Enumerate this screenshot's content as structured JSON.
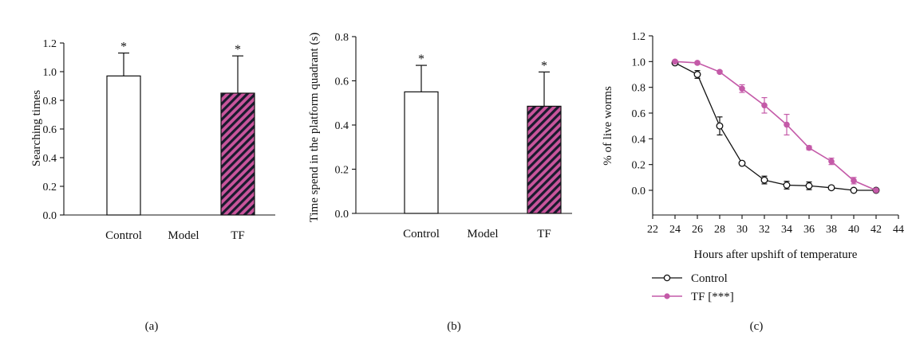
{
  "chart_data": [
    {
      "type": "bar",
      "caption": "(a)",
      "categories": [
        "Control",
        "Model",
        "TF"
      ],
      "values": [
        0.97,
        0,
        0.85
      ],
      "error": [
        0.16,
        0,
        0.26
      ],
      "significance": [
        "*",
        "",
        "*"
      ],
      "ylabel": "Searching times",
      "ylim": [
        0,
        1.2
      ],
      "yticks": [
        "0.0",
        "0.2",
        "0.4",
        "0.6",
        "0.8",
        "1.0",
        "1.2"
      ],
      "grid": false,
      "bar_styles": [
        "white",
        "none",
        "hatched"
      ]
    },
    {
      "type": "bar",
      "caption": "(b)",
      "categories": [
        "Control",
        "Model",
        "TF"
      ],
      "values": [
        0.55,
        0,
        0.485
      ],
      "error": [
        0.12,
        0,
        0.155
      ],
      "significance": [
        "*",
        "",
        "*"
      ],
      "ylabel": "Time spend in the platform quadrant (s)",
      "ylim": [
        0,
        0.8
      ],
      "yticks": [
        "0.0",
        "0.2",
        "0.4",
        "0.6",
        "0.8"
      ],
      "grid": false,
      "bar_styles": [
        "white",
        "none",
        "hatched"
      ]
    },
    {
      "type": "line",
      "caption": "(c)",
      "xlabel": "Hours after upshift of temperature",
      "ylabel": "% of live worms",
      "xlim": [
        22,
        44
      ],
      "ylim": [
        0,
        1.2
      ],
      "xticks": [
        "22",
        "24",
        "26",
        "28",
        "30",
        "32",
        "34",
        "36",
        "38",
        "40",
        "42",
        "44"
      ],
      "yticks": [
        "0.0",
        "0.2",
        "0.4",
        "0.6",
        "0.8",
        "1.0",
        "1.2"
      ],
      "x": [
        24,
        26,
        28,
        30,
        32,
        34,
        36,
        38,
        40,
        42
      ],
      "series": [
        {
          "name": "Control",
          "marker": "open-circle",
          "values": [
            0.99,
            0.9,
            0.5,
            0.21,
            0.08,
            0.04,
            0.035,
            0.02,
            0.0,
            0.0
          ],
          "error": [
            0.01,
            0.03,
            0.07,
            0.01,
            0.03,
            0.03,
            0.03,
            0.015,
            0.005,
            0.0
          ]
        },
        {
          "name": "TF [***]",
          "marker": "filled-circle",
          "values": [
            1.0,
            0.99,
            0.92,
            0.79,
            0.66,
            0.51,
            0.33,
            0.225,
            0.075,
            0.0
          ],
          "error": [
            0.01,
            0.01,
            0.01,
            0.03,
            0.06,
            0.08,
            0.015,
            0.025,
            0.025,
            0.0
          ]
        }
      ],
      "legend_position": "bottom-left",
      "grid": false
    }
  ],
  "colors": {
    "axis": "#111111",
    "hatch_fill": "#c9559c",
    "hatch_stripe": "#1a1a2e",
    "tf_line": "#c45aa8",
    "control_line": "#111111"
  }
}
